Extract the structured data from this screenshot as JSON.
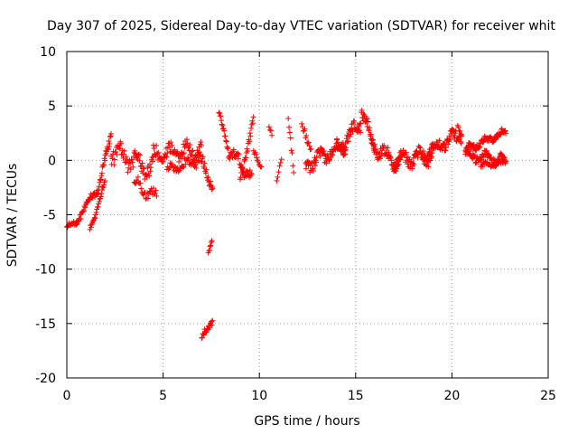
{
  "chart_data": {
    "type": "scatter",
    "title": "Day 307 of 2025, Sidereal Day-to-day VTEC variation (SDTVAR) for receiver whit",
    "xlabel": "GPS time / hours",
    "ylabel": "SDTVAR / TECUs",
    "xlim": [
      0,
      25
    ],
    "ylim": [
      -20,
      10
    ],
    "xticks": [
      0,
      5,
      10,
      15,
      20,
      25
    ],
    "yticks": [
      -20,
      -15,
      -10,
      -5,
      0,
      5,
      10
    ],
    "grid": true,
    "marker": "+",
    "color": "#ff0000",
    "segments": [
      {
        "t0": 0.0,
        "t1": 0.6,
        "y0": -6.2,
        "y1": -5.6,
        "noise": 0.4,
        "step": 0.03
      },
      {
        "t0": 0.5,
        "t1": 1.6,
        "y0": -5.5,
        "y1": -2.5,
        "noise": 0.6,
        "step": 0.03
      },
      {
        "t0": 1.2,
        "t1": 2.0,
        "y0": -6.3,
        "y1": -2.0,
        "noise": 0.5,
        "step": 0.03
      },
      {
        "t0": 1.6,
        "t1": 2.3,
        "y0": -3.0,
        "y1": 2.5,
        "noise": 0.7,
        "step": 0.025
      },
      {
        "t0": 2.3,
        "t1": 4.5,
        "y0": 1.0,
        "y1": -1.0,
        "noise": 1.4,
        "step": 0.03
      },
      {
        "t0": 3.5,
        "t1": 4.7,
        "y0": -2.0,
        "y1": -3.5,
        "noise": 0.8,
        "step": 0.04
      },
      {
        "t0": 4.5,
        "t1": 7.0,
        "y0": 0.5,
        "y1": 1.0,
        "noise": 1.1,
        "step": 0.03
      },
      {
        "t0": 5.2,
        "t1": 6.8,
        "y0": -1.0,
        "y1": 0.0,
        "noise": 0.7,
        "step": 0.04
      },
      {
        "t0": 6.8,
        "t1": 7.6,
        "y0": 0.5,
        "y1": -2.5,
        "noise": 0.9,
        "step": 0.03
      },
      {
        "t0": 7.0,
        "t1": 7.6,
        "y0": -16.5,
        "y1": -14.5,
        "noise": 0.5,
        "step": 0.03
      },
      {
        "t0": 7.35,
        "t1": 7.55,
        "y0": -8.4,
        "y1": -7.2,
        "noise": 0.3,
        "step": 0.03
      },
      {
        "t0": 7.9,
        "t1": 8.4,
        "y0": 4.3,
        "y1": 1.0,
        "noise": 0.4,
        "step": 0.03
      },
      {
        "t0": 8.4,
        "t1": 9.6,
        "y0": 1.0,
        "y1": -1.5,
        "noise": 0.9,
        "step": 0.03
      },
      {
        "t0": 9.0,
        "t1": 9.7,
        "y0": -1.5,
        "y1": 3.5,
        "noise": 0.7,
        "step": 0.03
      },
      {
        "t0": 9.7,
        "t1": 10.1,
        "y0": 0.5,
        "y1": -0.5,
        "noise": 0.5,
        "step": 0.04
      },
      {
        "t0": 10.5,
        "t1": 10.7,
        "y0": 3.0,
        "y1": 2.0,
        "noise": 0.3,
        "step": 0.05
      },
      {
        "t0": 10.9,
        "t1": 11.2,
        "y0": -1.5,
        "y1": 0.5,
        "noise": 0.5,
        "step": 0.05
      },
      {
        "t0": 11.5,
        "t1": 11.8,
        "y0": 3.8,
        "y1": -1.0,
        "noise": 0.6,
        "step": 0.04
      },
      {
        "t0": 12.2,
        "t1": 12.7,
        "y0": 3.0,
        "y1": 1.0,
        "noise": 0.6,
        "step": 0.04
      },
      {
        "t0": 12.4,
        "t1": 14.5,
        "y0": -0.5,
        "y1": 1.5,
        "noise": 1.0,
        "step": 0.025
      },
      {
        "t0": 14.0,
        "t1": 15.3,
        "y0": 1.0,
        "y1": 3.5,
        "noise": 1.0,
        "step": 0.025
      },
      {
        "t0": 15.3,
        "t1": 16.0,
        "y0": 4.8,
        "y1": 1.0,
        "noise": 0.9,
        "step": 0.025
      },
      {
        "t0": 15.8,
        "t1": 17.3,
        "y0": 1.5,
        "y1": -0.5,
        "noise": 1.0,
        "step": 0.025
      },
      {
        "t0": 17.0,
        "t1": 19.0,
        "y0": 0.0,
        "y1": 0.5,
        "noise": 1.1,
        "step": 0.025
      },
      {
        "t0": 18.5,
        "t1": 20.5,
        "y0": 0.5,
        "y1": 2.5,
        "noise": 0.9,
        "step": 0.025
      },
      {
        "t0": 20.3,
        "t1": 20.5,
        "y0": 3.2,
        "y1": 2.5,
        "noise": 0.3,
        "step": 0.04
      },
      {
        "t0": 20.7,
        "t1": 22.8,
        "y0": 1.0,
        "y1": 2.6,
        "noise": 0.5,
        "step": 0.025
      },
      {
        "t0": 20.7,
        "t1": 22.8,
        "y0": 0.5,
        "y1": 0.0,
        "noise": 0.7,
        "step": 0.025
      },
      {
        "t0": 21.5,
        "t1": 22.8,
        "y0": -0.5,
        "y1": -0.2,
        "noise": 0.4,
        "step": 0.04
      }
    ]
  }
}
